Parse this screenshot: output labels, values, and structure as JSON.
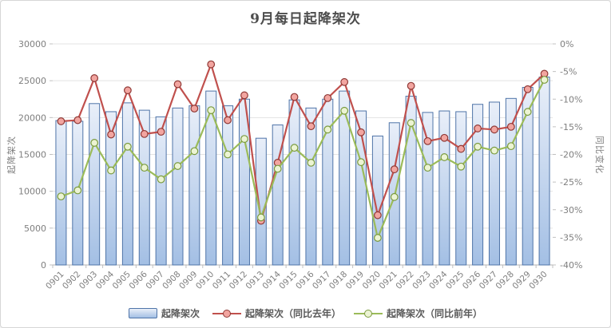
{
  "chart": {
    "title": "9月每日起降架次",
    "left_axis_title": "起降架次",
    "right_axis_title": "同比变化"
  },
  "legend": {
    "items": [
      {
        "label": "起降架次"
      },
      {
        "label": "起降架次（同比去年）"
      },
      {
        "label": "起降架次（同比前年）"
      }
    ]
  },
  "colors": {
    "bar_border": "#4f74a8",
    "bar_fill_top": "#e9eff9",
    "bar_fill_bottom": "#a3bfe4",
    "red_line": "#c0504d",
    "red_marker_fill": "#f2a5a0",
    "red_marker_border": "#8f3835",
    "green_line": "#9bbb59",
    "green_marker_fill": "#ecf4d3",
    "green_marker_border": "#7a9a3d",
    "grid": "#e3e3e3",
    "axis": "#b3b3b3",
    "tick": "#c0c0c0",
    "axis_text": "#7f7f7f",
    "title_text": "#4d4d4d"
  },
  "chart_data": {
    "type": "bar",
    "subtype": "combo-bar-lines",
    "title": "9月每日起降架次",
    "grid": true,
    "legend_position": "bottom",
    "categories": [
      "0901",
      "0902",
      "0903",
      "0904",
      "0905",
      "0906",
      "0907",
      "0908",
      "0909",
      "0910",
      "0911",
      "0912",
      "0913",
      "0914",
      "0915",
      "0916",
      "0917",
      "0918",
      "0919",
      "0920",
      "0921",
      "0922",
      "0923",
      "0924",
      "0925",
      "0926",
      "0927",
      "0928",
      "0929",
      "0930"
    ],
    "left_axis": {
      "title": "起降架次",
      "min": 0,
      "max": 30000,
      "step": 5000,
      "tick_labels": [
        "0",
        "5000",
        "10000",
        "15000",
        "20000",
        "25000",
        "30000"
      ]
    },
    "right_axis": {
      "title": "同比变化",
      "min": -40,
      "max": 0,
      "step": 5,
      "tick_labels": [
        "-40%",
        "-35%",
        "-30%",
        "-25%",
        "-20%",
        "-15%",
        "-10%",
        "-5%",
        "0%"
      ]
    },
    "series": [
      {
        "name": "起降架次",
        "type": "bar",
        "axis": "left",
        "values": [
          19600,
          19500,
          21900,
          20800,
          22000,
          21000,
          20100,
          21300,
          21600,
          23600,
          21600,
          22500,
          17200,
          19000,
          22400,
          21300,
          22500,
          23600,
          20900,
          17500,
          19300,
          22900,
          20700,
          20900,
          20800,
          21800,
          22100,
          22600,
          24100,
          25500
        ]
      },
      {
        "name": "起降架次（同比去年）",
        "type": "line",
        "axis": "right",
        "color": "#c0504d",
        "values": [
          -14.0,
          -13.8,
          -6.2,
          -16.4,
          -8.4,
          -16.3,
          -15.9,
          -7.3,
          -11.7,
          -3.7,
          -13.8,
          -9.3,
          -32.0,
          -21.5,
          -9.6,
          -14.9,
          -9.8,
          -6.9,
          -16.0,
          -31.0,
          -22.7,
          -7.6,
          -17.6,
          -17.0,
          -19.0,
          -15.3,
          -15.5,
          -15.0,
          -8.2,
          -5.4
        ]
      },
      {
        "name": "起降架次（同比前年）",
        "type": "line",
        "axis": "right",
        "color": "#9bbb59",
        "values": [
          -27.6,
          -26.5,
          -17.9,
          -22.9,
          -18.6,
          -22.4,
          -24.5,
          -22.1,
          -19.4,
          -12.0,
          -20.0,
          -17.2,
          -31.4,
          -22.6,
          -18.8,
          -21.5,
          -15.5,
          -12.1,
          -21.4,
          -35.1,
          -27.7,
          -14.3,
          -22.4,
          -20.5,
          -22.2,
          -18.6,
          -19.3,
          -18.5,
          -12.3,
          -6.5
        ]
      }
    ]
  }
}
